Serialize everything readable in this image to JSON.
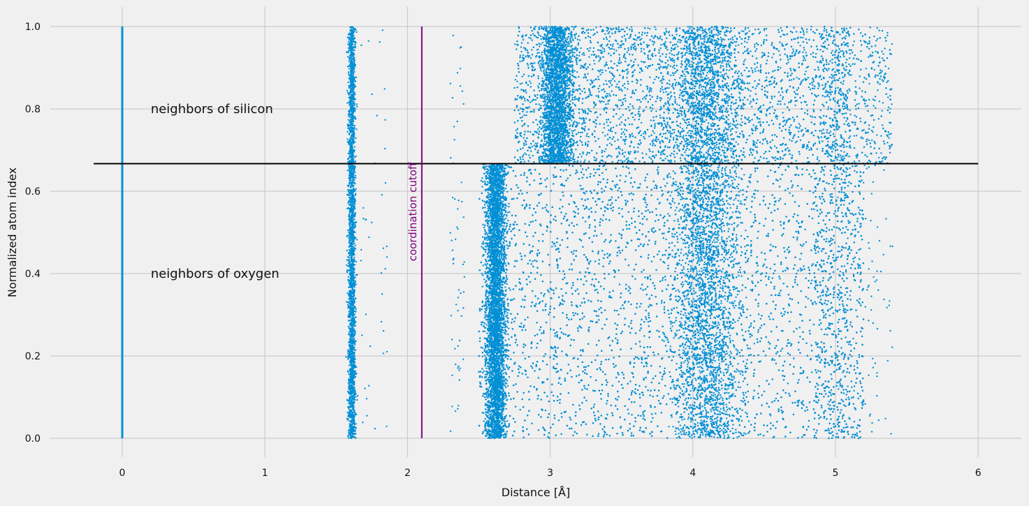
{
  "chart_data": {
    "type": "scatter",
    "title": "",
    "xlabel": "Distance [Å]",
    "ylabel": "Normalized atom index",
    "xlim": [
      -0.5,
      6.3
    ],
    "ylim": [
      -0.03,
      1.03
    ],
    "xticks": [
      0,
      1,
      2,
      3,
      4,
      5,
      6
    ],
    "yticks": [
      0.0,
      0.2,
      0.4,
      0.6,
      0.8,
      1.0
    ],
    "xtick_labels": [
      "0",
      "1",
      "2",
      "3",
      "4",
      "5",
      "6"
    ],
    "ytick_labels": [
      "0.0",
      "0.2",
      "0.4",
      "0.6",
      "0.8",
      "1.0"
    ],
    "grid": true,
    "style": "fivethirtyeight",
    "point_color": "#008fd5",
    "separator": {
      "y": 0.667,
      "x_range": [
        -0.2,
        6.0
      ],
      "color": "#000000"
    },
    "cutoff": {
      "x": 2.1,
      "y_range": [
        0,
        1
      ],
      "label": "coordination cutoff",
      "color": "#800080"
    },
    "annotations": [
      {
        "text": "neighbors of silicon",
        "x": 0.2,
        "y": 0.8
      },
      {
        "text": "neighbors of oxygen",
        "x": 0.2,
        "y": 0.4
      }
    ],
    "self_line": {
      "x": 0,
      "y_range": [
        0,
        1
      ],
      "color": "#008fd5"
    },
    "clusters": [
      {
        "name": "Si-O bonds",
        "x_center": 1.61,
        "x_spread": 0.03,
        "y_range": [
          0,
          1
        ],
        "density": "high"
      },
      {
        "name": "Si-O sparse tail",
        "x_range": [
          1.65,
          1.85
        ],
        "y_range": [
          0,
          1
        ],
        "density": "very low"
      },
      {
        "name": "sparse 2.3-2.4",
        "x_range": [
          2.3,
          2.4
        ],
        "y_range": [
          0,
          1
        ],
        "density": "very low"
      },
      {
        "name": "O-O first shell",
        "x_center": 2.62,
        "x_spread": 0.07,
        "y_range": [
          0,
          0.667
        ],
        "density": "high"
      },
      {
        "name": "oxygen neighbors continuum",
        "x_range": [
          2.45,
          5.2
        ],
        "y_range": [
          0,
          0.667
        ],
        "density": "medium"
      },
      {
        "name": "silicon neighbors continuum",
        "x_range": [
          2.7,
          5.4
        ],
        "y_range": [
          0.667,
          1
        ],
        "density": "medium"
      },
      {
        "name": "Si-Si peak",
        "x_center": 3.05,
        "x_spread": 0.12,
        "y_range": [
          0.667,
          1
        ],
        "density": "high"
      },
      {
        "name": "far shell peak",
        "x_center": 4.1,
        "x_spread": 0.25,
        "y_range": [
          0,
          1
        ],
        "density": "high"
      }
    ]
  }
}
